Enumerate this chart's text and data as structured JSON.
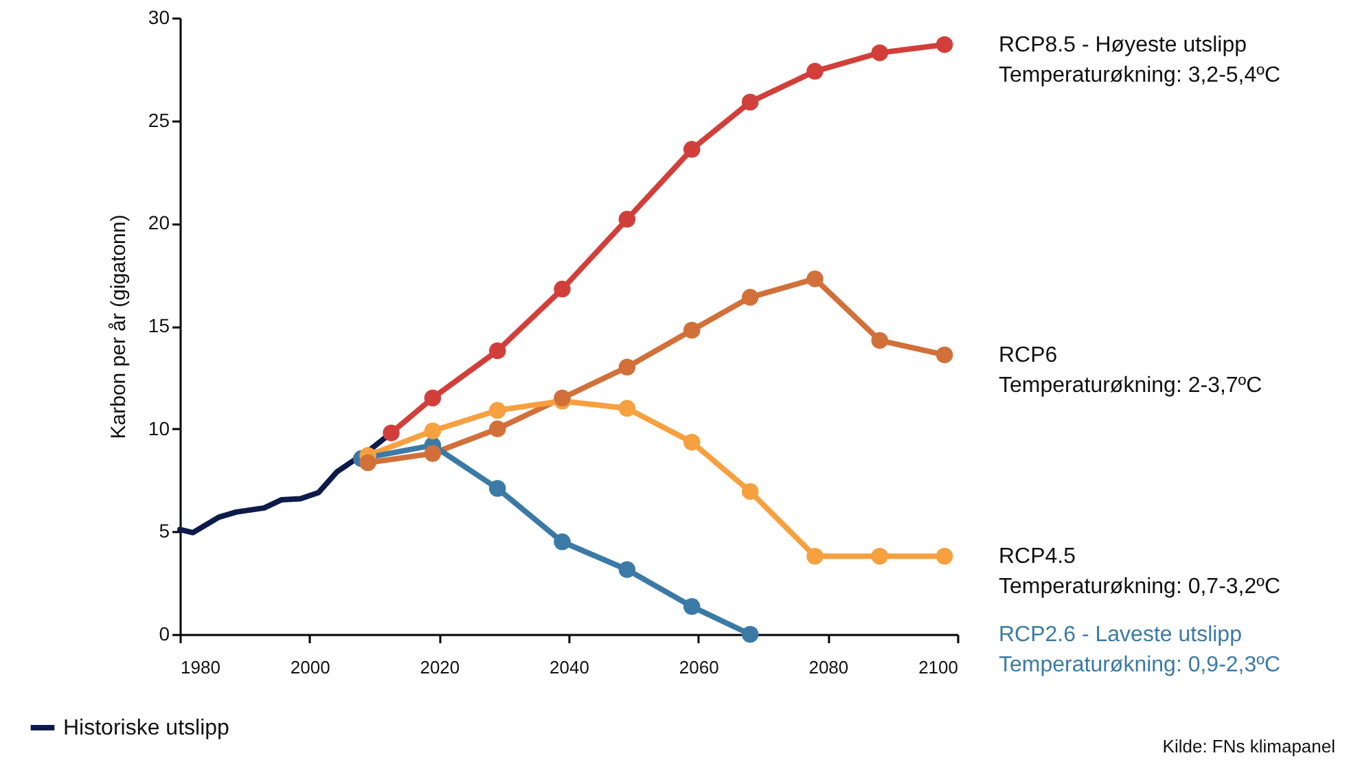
{
  "chart_data": {
    "type": "line",
    "ylabel": "Karbon per år (gigatonn)",
    "xlim": [
      1980,
      2100
    ],
    "xticks": [
      1980,
      2000,
      2020,
      2040,
      2060,
      2080,
      2100
    ],
    "ylim": [
      0,
      30
    ],
    "yticks": [
      0,
      5,
      10,
      15,
      20,
      25,
      30
    ],
    "grid": false,
    "legend": "bottom left",
    "line_style": "solid",
    "series": [
      {
        "name": "Historiske utslipp",
        "color": "#0d1b4b",
        "marker": "none",
        "x": [
          1980,
          1982,
          1986,
          1988.7,
          1993,
          1995.7,
          1998.6,
          2001.4,
          2004.2,
          2007,
          2009,
          2012.6
        ],
        "values": [
          5.1,
          4.95,
          5.7,
          5.95,
          6.15,
          6.55,
          6.6,
          6.9,
          7.9,
          8.5,
          8.9,
          9.8
        ]
      },
      {
        "name": "RCP8.5 - Høyeste utslipp\nTemperaturøkning: 3,2-5,4ºC",
        "color": "#d23f3a",
        "marker": "circle",
        "x": [
          2012.6,
          2019,
          2029,
          2039,
          2049,
          2059,
          2068,
          2078,
          2088,
          2098
        ],
        "values": [
          9.8,
          11.5,
          13.8,
          16.8,
          20.2,
          23.6,
          25.9,
          27.4,
          28.3,
          28.7
        ]
      },
      {
        "name": "RCP6\nTemperaturøkning: 2-3,7ºC",
        "color": "#d2703a",
        "marker": "circle",
        "x": [
          2009,
          2019,
          2029,
          2039,
          2049,
          2059,
          2068,
          2078,
          2088,
          2098
        ],
        "values": [
          8.35,
          8.8,
          10.0,
          11.5,
          13.0,
          14.8,
          16.4,
          17.3,
          14.3,
          13.6
        ]
      },
      {
        "name": "RCP4.5\nTemperaturøkning: 0,7-3,2ºC",
        "color": "#f7a040",
        "marker": "circle",
        "x": [
          2009,
          2019,
          2029,
          2039,
          2049,
          2059,
          2068,
          2078,
          2088,
          2098
        ],
        "values": [
          8.7,
          9.9,
          10.9,
          11.35,
          11.0,
          9.35,
          6.95,
          3.8,
          3.8,
          3.8
        ]
      },
      {
        "name": "RCP2.6 - Laveste utslipp\nTemperaturøkning: 0,9-2,3ºC",
        "color": "#3b7aa6",
        "marker": "circle",
        "x": [
          2008,
          2019,
          2029,
          2039,
          2049,
          2059,
          2068
        ],
        "values": [
          8.55,
          9.2,
          7.1,
          4.5,
          3.15,
          1.35,
          0
        ]
      }
    ],
    "annotations": [
      "Kilde: FNs klimapanel"
    ]
  }
}
